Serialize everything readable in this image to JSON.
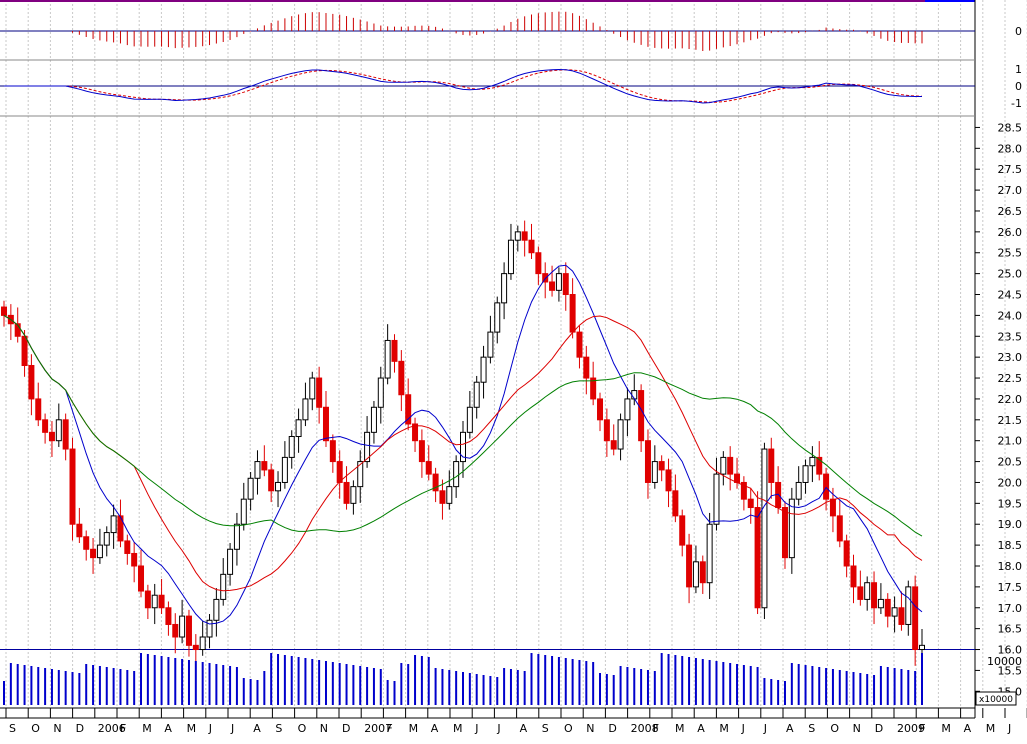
{
  "chart_data": {
    "type": "candlestick",
    "price_axis": {
      "ylim": [
        14.6,
        28.75
      ],
      "ticks": [
        "28.5",
        "28.0",
        "27.5",
        "27.0",
        "26.5",
        "26.0",
        "25.5",
        "25.0",
        "24.5",
        "24.0",
        "23.5",
        "23.0",
        "22.5",
        "22.0",
        "21.5",
        "21.0",
        "20.5",
        "20.0",
        "19.5",
        "19.0",
        "18.5",
        "18.0",
        "17.5",
        "17.0",
        "16.5",
        "16.0",
        "15.5",
        "15.0"
      ],
      "support_line": 16.0
    },
    "indicator_panel_1": {
      "ticks": [
        "0"
      ]
    },
    "indicator_panel_2": {
      "ticks": [
        "1",
        "0",
        "-1"
      ]
    },
    "volume_panel": {
      "ticks": [
        "10000"
      ],
      "multiplier_label": "x10000"
    },
    "x_axis_labels": [
      "S",
      "O",
      "N",
      "D",
      "2006",
      "F",
      "M",
      "A",
      "M",
      "J",
      "J",
      "A",
      "S",
      "O",
      "N",
      "D",
      "2007",
      "F",
      "M",
      "A",
      "M",
      "J",
      "J",
      "A",
      "S",
      "O",
      "N",
      "D",
      "2008",
      "F",
      "M",
      "A",
      "M",
      "J",
      "J",
      "A",
      "S",
      "O",
      "N",
      "D",
      "2009",
      "F",
      "M",
      "A",
      "M",
      "J",
      "J",
      "A"
    ],
    "closes": [
      24.0,
      23.8,
      23.5,
      22.8,
      22.0,
      21.5,
      21.2,
      21.0,
      21.5,
      20.8,
      19.0,
      18.7,
      18.4,
      18.2,
      18.5,
      18.8,
      19.2,
      18.6,
      18.3,
      18.0,
      17.4,
      17.0,
      17.3,
      17.0,
      16.6,
      16.3,
      16.8,
      16.1,
      16.0,
      16.3,
      16.7,
      17.2,
      17.8,
      18.4,
      19.0,
      19.6,
      20.1,
      20.5,
      20.3,
      19.8,
      20.0,
      20.6,
      21.1,
      21.5,
      22.0,
      22.5,
      21.8,
      21.0,
      20.5,
      20.0,
      19.5,
      19.9,
      20.5,
      21.2,
      21.8,
      22.5,
      23.4,
      22.9,
      22.1,
      21.4,
      21.0,
      20.5,
      20.2,
      19.8,
      19.5,
      19.9,
      20.5,
      21.2,
      21.8,
      22.4,
      23.0,
      23.6,
      24.3,
      25.0,
      25.8,
      26.0,
      25.8,
      25.5,
      25.0,
      24.8,
      24.6,
      25.0,
      24.5,
      23.6,
      23.0,
      22.5,
      22.0,
      21.5,
      21.0,
      20.8,
      21.5,
      22.0,
      22.2,
      21.0,
      20.0,
      20.5,
      20.3,
      19.8,
      19.2,
      18.5,
      17.5,
      18.1,
      17.6,
      19.0,
      20.2,
      20.6,
      20.2,
      20.0,
      19.6,
      19.4,
      17.0,
      20.8,
      20.0,
      19.4,
      18.2,
      19.6,
      20.0,
      20.4,
      20.6,
      20.2,
      19.6,
      19.2,
      18.6,
      18.0,
      17.5,
      17.2,
      17.6,
      17.0,
      17.2,
      16.8,
      17.0,
      16.6,
      17.5,
      16.0,
      16.1
    ]
  }
}
